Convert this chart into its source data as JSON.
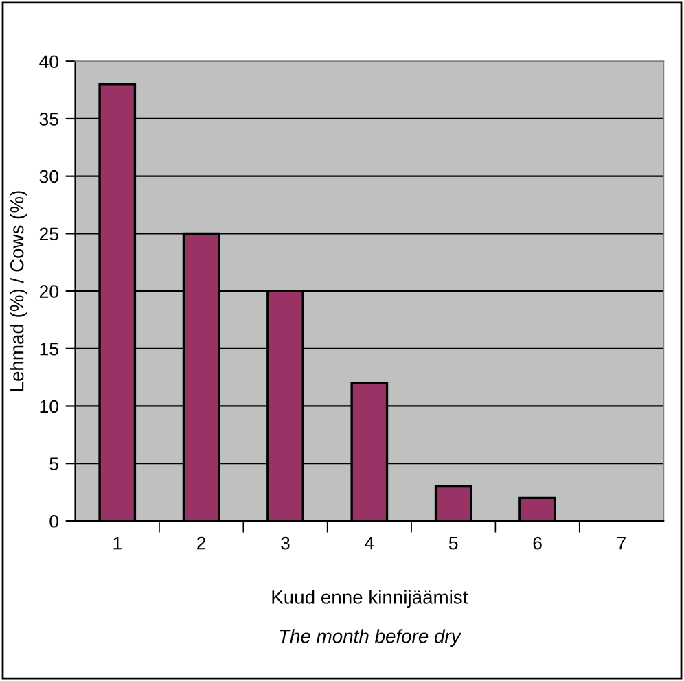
{
  "chart_data": {
    "type": "bar",
    "xlabel": "Kuud enne kinnijäämist\nThe month before dry",
    "ylabel": "Lehmad (%) / Cows (%)",
    "categories": [
      "1",
      "2",
      "3",
      "4",
      "5",
      "6",
      "7"
    ],
    "values": [
      38,
      25,
      20,
      12,
      3,
      2,
      0
    ],
    "color": "#993366",
    "ylim": [
      0,
      40
    ],
    "yticks": [
      0,
      5,
      10,
      15,
      20,
      25,
      30,
      35,
      40
    ],
    "grid": "y"
  }
}
